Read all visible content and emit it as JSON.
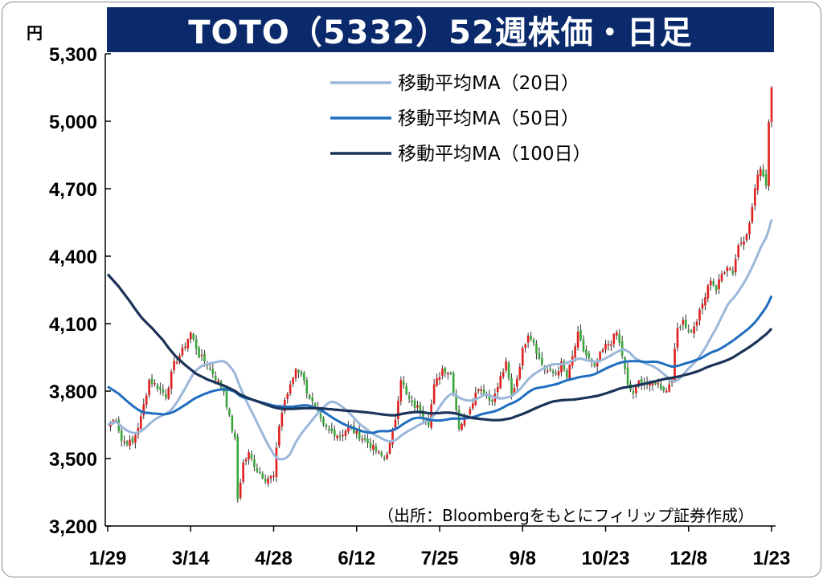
{
  "header": {
    "title": "TOTO（5332）52週株価・日足"
  },
  "chart_data": {
    "type": "candlestick",
    "title": "TOTO（5332）52週株価・日足",
    "unit": "円",
    "source": "（出所：Bloombergをもとにフィリップ証券作成）",
    "ylim": [
      3200,
      5300
    ],
    "y_ticks": [
      3200,
      3500,
      3800,
      4100,
      4400,
      4700,
      5000,
      5300
    ],
    "y_tick_labels": [
      "3,200",
      "3,500",
      "3,800",
      "4,100",
      "4,400",
      "4,700",
      "5,000",
      "5,300"
    ],
    "x_ticks": [
      "1/29",
      "3/14",
      "4/28",
      "6/12",
      "7/25",
      "9/8",
      "10/23",
      "12/8",
      "1/23"
    ],
    "x_tick_index": [
      0,
      30,
      60,
      90,
      120,
      150,
      180,
      210,
      240
    ],
    "num_days": 241,
    "close_anchors": [
      [
        0,
        3650
      ],
      [
        3,
        3680
      ],
      [
        5,
        3580
      ],
      [
        9,
        3570
      ],
      [
        12,
        3680
      ],
      [
        15,
        3850
      ],
      [
        18,
        3820
      ],
      [
        21,
        3780
      ],
      [
        24,
        3920
      ],
      [
        27,
        3980
      ],
      [
        30,
        4060
      ],
      [
        33,
        3960
      ],
      [
        36,
        3920
      ],
      [
        39,
        3860
      ],
      [
        42,
        3800
      ],
      [
        44,
        3680
      ],
      [
        46,
        3580
      ],
      [
        47,
        3320
      ],
      [
        49,
        3480
      ],
      [
        51,
        3520
      ],
      [
        54,
        3450
      ],
      [
        57,
        3410
      ],
      [
        60,
        3420
      ],
      [
        62,
        3650
      ],
      [
        64,
        3760
      ],
      [
        66,
        3820
      ],
      [
        68,
        3900
      ],
      [
        70,
        3880
      ],
      [
        72,
        3800
      ],
      [
        75,
        3720
      ],
      [
        78,
        3640
      ],
      [
        81,
        3620
      ],
      [
        84,
        3600
      ],
      [
        87,
        3640
      ],
      [
        90,
        3610
      ],
      [
        93,
        3580
      ],
      [
        95,
        3560
      ],
      [
        98,
        3520
      ],
      [
        100,
        3500
      ],
      [
        102,
        3560
      ],
      [
        104,
        3680
      ],
      [
        106,
        3860
      ],
      [
        108,
        3780
      ],
      [
        110,
        3740
      ],
      [
        113,
        3720
      ],
      [
        116,
        3660
      ],
      [
        118,
        3820
      ],
      [
        121,
        3900
      ],
      [
        124,
        3880
      ],
      [
        127,
        3640
      ],
      [
        130,
        3700
      ],
      [
        132,
        3760
      ],
      [
        134,
        3820
      ],
      [
        136,
        3800
      ],
      [
        138,
        3760
      ],
      [
        140,
        3780
      ],
      [
        142,
        3860
      ],
      [
        144,
        3920
      ],
      [
        146,
        3780
      ],
      [
        148,
        3860
      ],
      [
        150,
        3980
      ],
      [
        152,
        4060
      ],
      [
        154,
        4020
      ],
      [
        156,
        3940
      ],
      [
        158,
        3900
      ],
      [
        160,
        3880
      ],
      [
        162,
        3880
      ],
      [
        164,
        3920
      ],
      [
        166,
        3860
      ],
      [
        168,
        3950
      ],
      [
        170,
        4050
      ],
      [
        172,
        3980
      ],
      [
        174,
        3940
      ],
      [
        176,
        3900
      ],
      [
        178,
        3960
      ],
      [
        180,
        4000
      ],
      [
        182,
        4020
      ],
      [
        184,
        4060
      ],
      [
        186,
        3960
      ],
      [
        188,
        3820
      ],
      [
        190,
        3790
      ],
      [
        192,
        3840
      ],
      [
        194,
        3840
      ],
      [
        196,
        3820
      ],
      [
        198,
        3840
      ],
      [
        200,
        3820
      ],
      [
        202,
        3800
      ],
      [
        204,
        3870
      ],
      [
        206,
        4080
      ],
      [
        208,
        4120
      ],
      [
        210,
        4060
      ],
      [
        212,
        4080
      ],
      [
        214,
        4150
      ],
      [
        216,
        4220
      ],
      [
        218,
        4300
      ],
      [
        220,
        4250
      ],
      [
        222,
        4320
      ],
      [
        224,
        4360
      ],
      [
        226,
        4330
      ],
      [
        228,
        4450
      ],
      [
        230,
        4480
      ],
      [
        232,
        4540
      ],
      [
        234,
        4700
      ],
      [
        236,
        4800
      ],
      [
        238,
        4720
      ],
      [
        239,
        5000
      ],
      [
        240,
        5150
      ]
    ],
    "series": [
      {
        "name": "移動平均MA（20日）",
        "color": "#9bb7da",
        "window": 20
      },
      {
        "name": "移動平均MA（50日）",
        "color": "#1f6ebf",
        "window": 50
      },
      {
        "name": "移動平均MA（100日）",
        "color": "#1b3358",
        "window": 100
      }
    ],
    "ma_seeds": {
      "ma50_start": [
        3820,
        3800,
        3770,
        3740,
        3720,
        3700,
        3700,
        3720,
        3740,
        3760,
        3790,
        3820
      ],
      "ma100_start": [
        4320,
        4290,
        4250,
        4200,
        4160,
        4110,
        4040,
        3980,
        3920,
        3880,
        3850,
        3820,
        3790,
        3770,
        3760,
        3750,
        3740,
        3730,
        3720,
        3715,
        3710,
        3708,
        3705,
        3700,
        3700
      ]
    },
    "candle_colors": {
      "up": "#e0201e",
      "down": "#3aa63a"
    },
    "grid": false,
    "legend_position": "top-center"
  }
}
